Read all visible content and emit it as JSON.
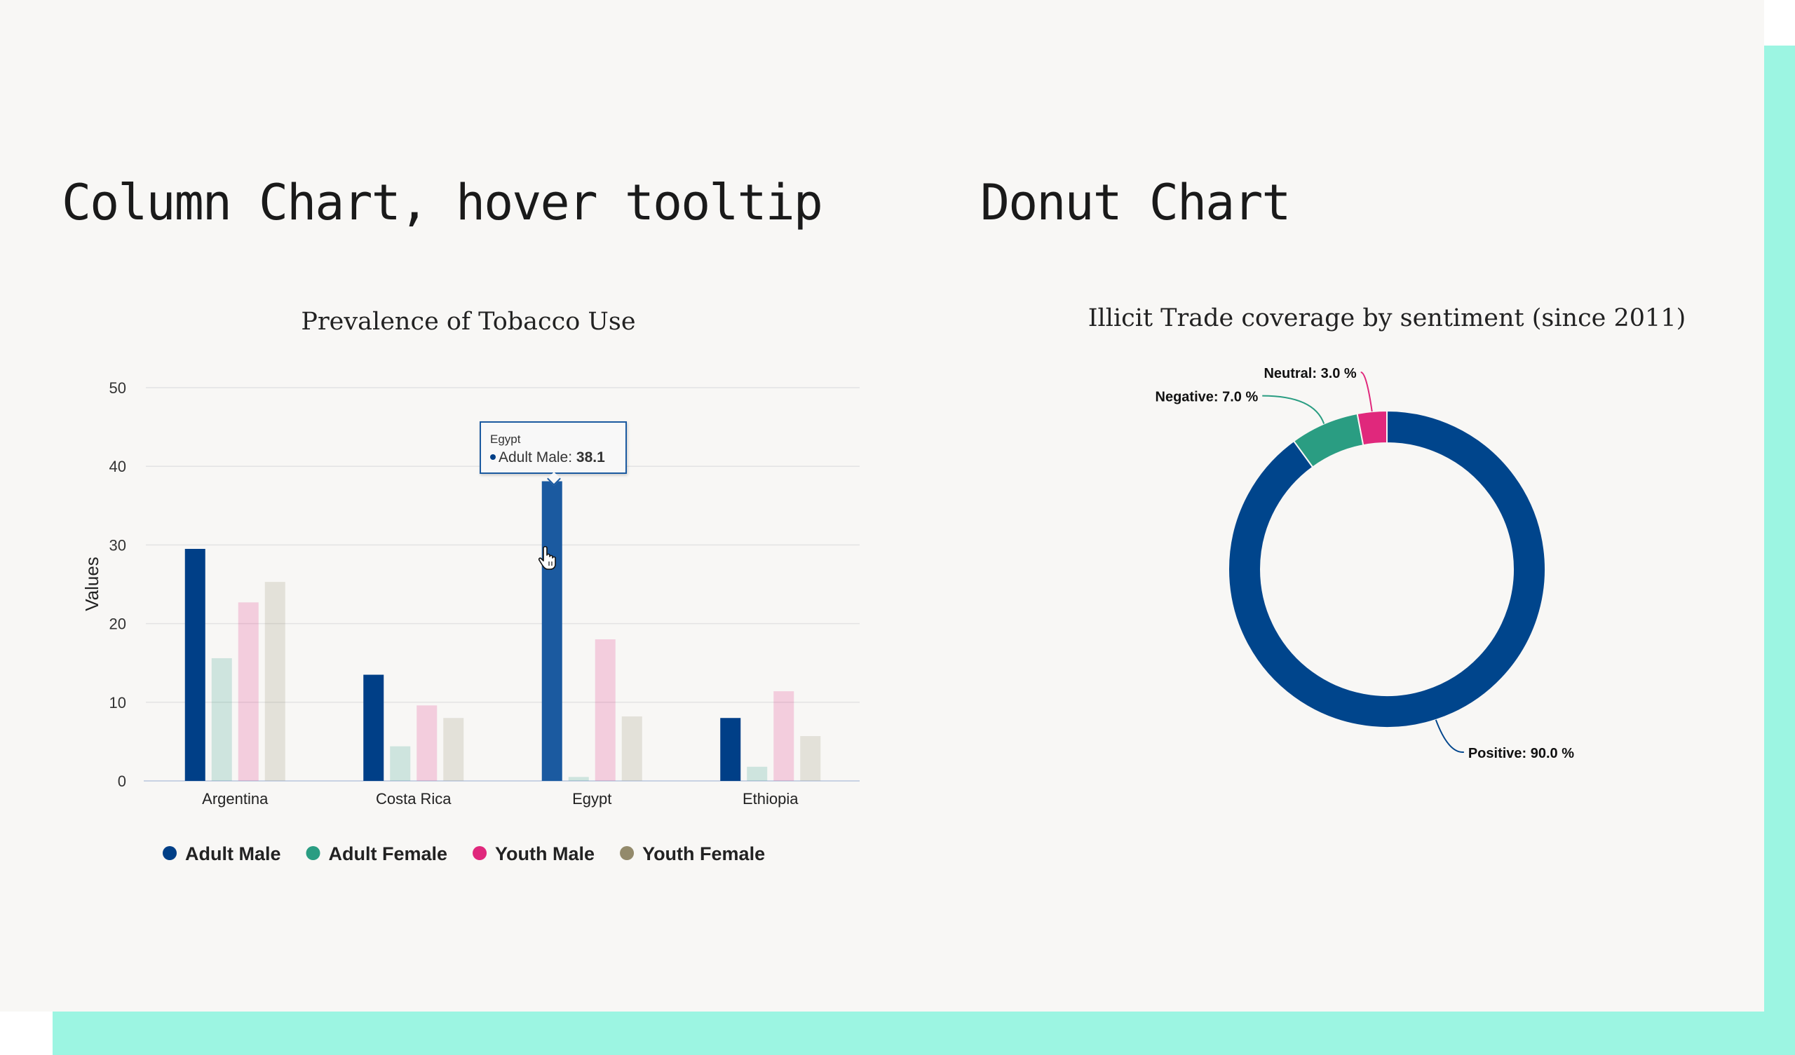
{
  "page": {
    "column_section_title": "Column Chart, hover tooltip",
    "donut_section_title": "Donut Chart"
  },
  "chart_data": [
    {
      "type": "bar",
      "title": "Prevalence of Tobacco Use",
      "ylabel": "Values",
      "ylim": [
        0,
        50
      ],
      "yticks": [
        0,
        10,
        20,
        30,
        40,
        50
      ],
      "grid": true,
      "legend_position": "bottom",
      "categories": [
        "Argentina",
        "Costa Rica",
        "Egypt",
        "Ethiopia"
      ],
      "series": [
        {
          "name": "Adult Male",
          "color": "#003f87",
          "values": [
            29.5,
            13.5,
            38.1,
            8.0
          ]
        },
        {
          "name": "Adult Female",
          "color": "#2a9d82",
          "values": [
            15.6,
            4.4,
            0.5,
            1.8
          ]
        },
        {
          "name": "Youth Male",
          "color": "#e0287c",
          "values": [
            22.7,
            9.6,
            18.0,
            11.4
          ]
        },
        {
          "name": "Youth Female",
          "color": "#938a6b",
          "values": [
            25.3,
            8.0,
            8.2,
            5.7
          ]
        }
      ],
      "hover": {
        "series_index": 0,
        "category_index": 2,
        "hover_color": "#1b5aa0",
        "dimmed_opacity": 0.2
      },
      "tooltip": {
        "category": "Egypt",
        "series_name": "Adult Male",
        "value": "38.1"
      }
    },
    {
      "type": "pie",
      "subtype": "donut",
      "title": "Illicit Trade coverage by sentiment (since 2011)",
      "slices": [
        {
          "name": "Positive",
          "value": 90.0,
          "label": "Positive: 90.0 %",
          "color": "#00458c"
        },
        {
          "name": "Negative",
          "value": 7.0,
          "label": "Negative: 7.0 %",
          "color": "#2a9d82"
        },
        {
          "name": "Neutral",
          "value": 3.0,
          "label": "Neutral: 3.0 %",
          "color": "#e0287c"
        }
      ]
    }
  ]
}
